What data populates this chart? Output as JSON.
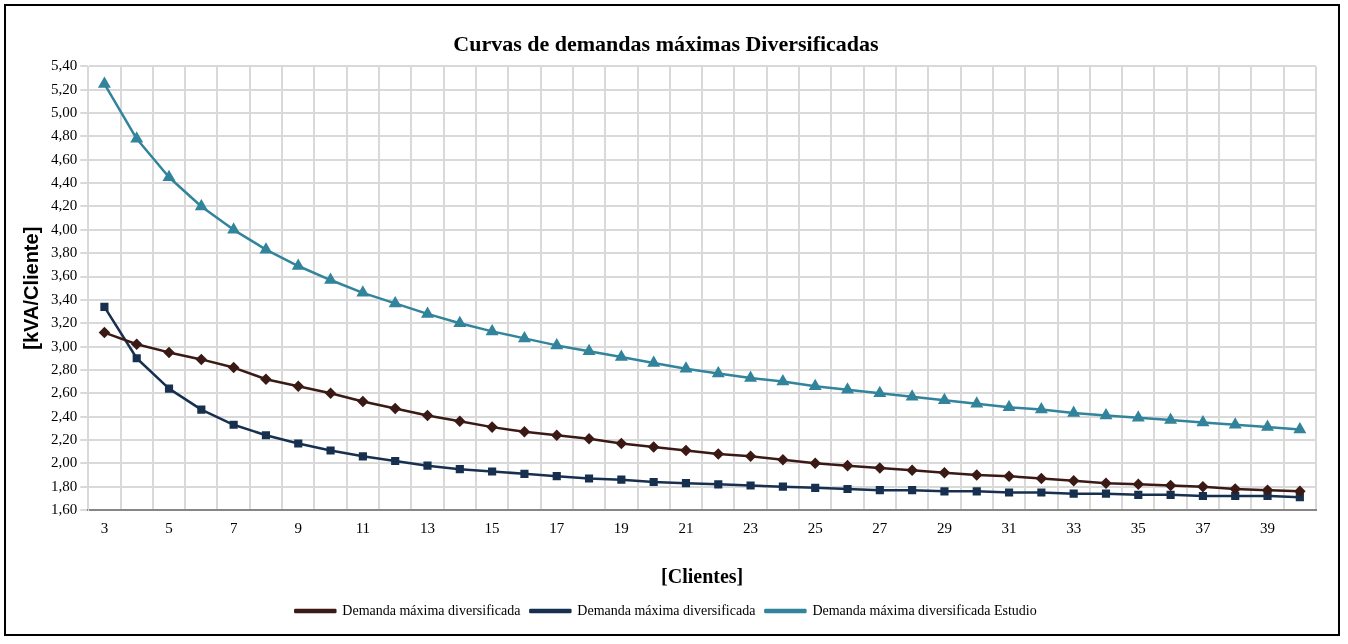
{
  "chart_data": {
    "type": "line",
    "title": "Curvas de demandas máximas Diversificadas",
    "xlabel": "[Clientes]",
    "ylabel": "[kVA/Cliente]",
    "x": [
      3,
      4,
      5,
      6,
      7,
      8,
      9,
      10,
      11,
      12,
      13,
      14,
      15,
      16,
      17,
      18,
      19,
      20,
      21,
      22,
      23,
      24,
      25,
      26,
      27,
      28,
      29,
      30,
      31,
      32,
      33,
      34,
      35,
      36,
      37,
      38,
      39,
      40
    ],
    "xlim": [
      2.5,
      40.5
    ],
    "xticks": [
      {
        "value": 2.5,
        "label": null
      },
      3,
      {
        "value": 3.5,
        "label": null
      },
      {
        "value": 4.5,
        "label": null
      },
      5,
      {
        "value": 5.5,
        "label": null
      },
      {
        "value": 6.5,
        "label": null
      },
      7,
      {
        "value": 7.5,
        "label": null
      },
      {
        "value": 8.5,
        "label": null
      },
      9,
      {
        "value": 9.5,
        "label": null
      },
      {
        "value": 10.5,
        "label": null
      },
      11,
      {
        "value": 11.5,
        "label": null
      },
      {
        "value": 12.5,
        "label": null
      },
      13,
      {
        "value": 13.5,
        "label": null
      },
      {
        "value": 14.5,
        "label": null
      },
      15,
      {
        "value": 15.5,
        "label": null
      },
      {
        "value": 16.5,
        "label": null
      },
      17,
      {
        "value": 17.5,
        "label": null
      },
      {
        "value": 18.5,
        "label": null
      },
      19,
      {
        "value": 19.5,
        "label": null
      },
      {
        "value": 20.5,
        "label": null
      },
      21,
      {
        "value": 21.5,
        "label": null
      },
      {
        "value": 22.5,
        "label": null
      },
      23,
      {
        "value": 23.5,
        "label": null
      },
      {
        "value": 24.5,
        "label": null
      },
      25,
      {
        "value": 25.5,
        "label": null
      },
      {
        "value": 26.5,
        "label": null
      },
      27,
      {
        "value": 27.5,
        "label": null
      },
      {
        "value": 28.5,
        "label": null
      },
      29,
      {
        "value": 29.5,
        "label": null
      },
      {
        "value": 30.5,
        "label": null
      },
      31,
      {
        "value": 31.5,
        "label": null
      },
      {
        "value": 32.5,
        "label": null
      },
      33,
      {
        "value": 33.5,
        "label": null
      },
      {
        "value": 34.5,
        "label": null
      },
      35,
      {
        "value": 35.5,
        "label": null
      },
      {
        "value": 36.5,
        "label": null
      },
      37,
      {
        "value": 37.5,
        "label": null
      },
      {
        "value": 38.5,
        "label": null
      },
      39,
      {
        "value": 39.5,
        "label": null
      },
      {
        "value": 40.5,
        "label": null
      }
    ],
    "series": [
      {
        "name": "Demanda máxima diversificada",
        "color": "#3b1a16",
        "marker": "diamond",
        "values": [
          3.12,
          3.02,
          2.95,
          2.89,
          2.82,
          2.72,
          2.66,
          2.6,
          2.53,
          2.47,
          2.41,
          2.36,
          2.31,
          2.27,
          2.24,
          2.21,
          2.17,
          2.14,
          2.11,
          2.08,
          2.06,
          2.03,
          2.0,
          1.98,
          1.96,
          1.94,
          1.92,
          1.9,
          1.89,
          1.87,
          1.85,
          1.83,
          1.82,
          1.81,
          1.8,
          1.78,
          1.77,
          1.76
        ]
      },
      {
        "name": "Demanda máxima diversificada",
        "color": "#17304f",
        "marker": "square",
        "values": [
          3.34,
          2.9,
          2.64,
          2.46,
          2.33,
          2.24,
          2.17,
          2.11,
          2.06,
          2.02,
          1.98,
          1.95,
          1.93,
          1.91,
          1.89,
          1.87,
          1.86,
          1.84,
          1.83,
          1.82,
          1.81,
          1.8,
          1.79,
          1.78,
          1.77,
          1.77,
          1.76,
          1.76,
          1.75,
          1.75,
          1.74,
          1.74,
          1.73,
          1.73,
          1.72,
          1.72,
          1.72,
          1.71
        ]
      },
      {
        "name": "Demanda máxima diversificada Estudio",
        "color": "#31849b",
        "marker": "triangle",
        "values": [
          5.25,
          4.78,
          4.45,
          4.2,
          4.0,
          3.83,
          3.69,
          3.57,
          3.46,
          3.37,
          3.28,
          3.2,
          3.13,
          3.07,
          3.01,
          2.96,
          2.91,
          2.86,
          2.81,
          2.77,
          2.73,
          2.7,
          2.66,
          2.63,
          2.6,
          2.57,
          2.54,
          2.51,
          2.48,
          2.46,
          2.43,
          2.41,
          2.39,
          2.37,
          2.35,
          2.33,
          2.31,
          2.29
        ]
      }
    ],
    "ylim": [
      1.6,
      5.4
    ],
    "yticks": [
      {
        "value": 1.6,
        "label": "1,60"
      },
      {
        "value": 1.8,
        "label": "1,80"
      },
      {
        "value": 2.0,
        "label": "2,00"
      },
      {
        "value": 2.2,
        "label": "2,20"
      },
      {
        "value": 2.4,
        "label": "2,40"
      },
      {
        "value": 2.6,
        "label": "2,60"
      },
      {
        "value": 2.8,
        "label": "2,80"
      },
      {
        "value": 3.0,
        "label": "3,00"
      },
      {
        "value": 3.2,
        "label": "3,20"
      },
      {
        "value": 3.4,
        "label": "3,40"
      },
      {
        "value": 3.6,
        "label": "3,60"
      },
      {
        "value": 3.8,
        "label": "3,80"
      },
      {
        "value": 4.0,
        "label": "4,00"
      },
      {
        "value": 4.2,
        "label": "4,20"
      },
      {
        "value": 4.4,
        "label": "4,40"
      },
      {
        "value": 4.6,
        "label": "4,60"
      },
      {
        "value": 4.8,
        "label": "4,80"
      },
      {
        "value": 5.0,
        "label": "5,00"
      },
      {
        "value": 5.2,
        "label": "5,20"
      },
      {
        "value": 5.4,
        "label": "5,40"
      }
    ],
    "grid": true,
    "legend": "bottom",
    "line_style": "solid"
  }
}
